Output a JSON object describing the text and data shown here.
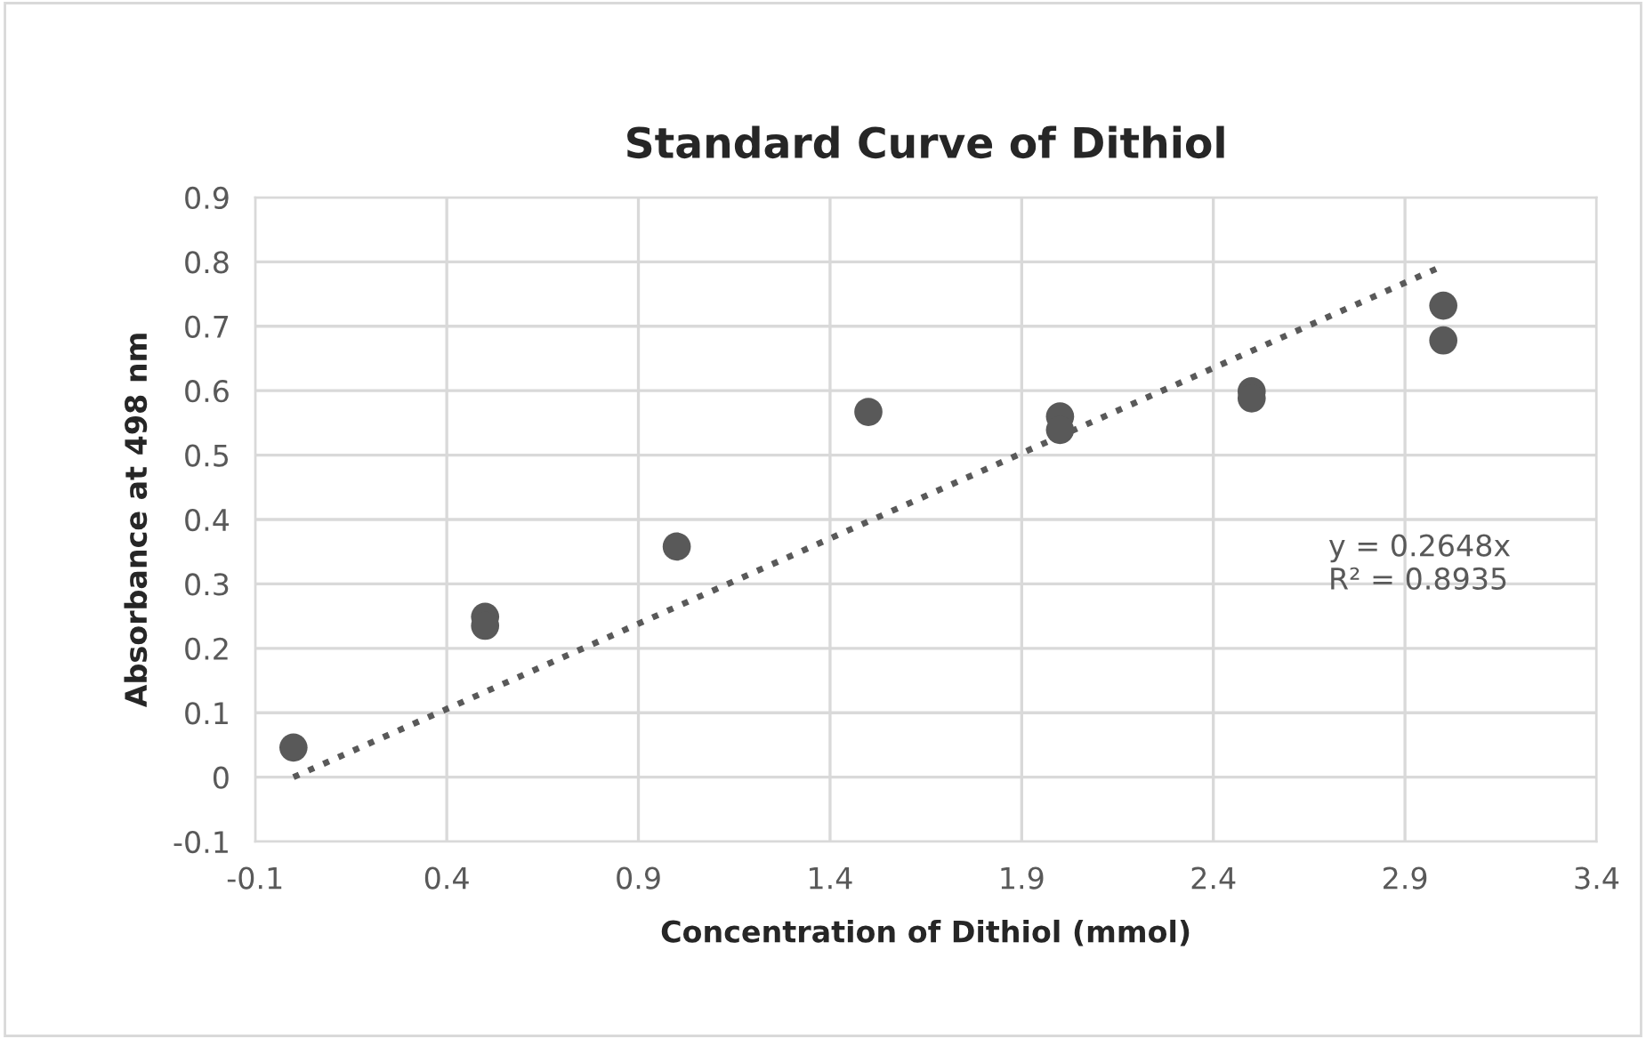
{
  "chart_data": {
    "type": "scatter",
    "title": "Standard Curve of Dithiol",
    "xlabel": "Concentration of Dithiol (mmol)",
    "ylabel": "Absorbance at 498 nm",
    "series": [
      {
        "color": "#595959",
        "marker": "circle",
        "x": [
          0,
          0.5,
          0.5,
          1,
          1.5,
          2,
          2,
          2.5,
          2.5,
          3,
          3
        ],
        "values": [
          0.046,
          0.249,
          0.235,
          0.358,
          0.567,
          0.56,
          0.539,
          0.599,
          0.588,
          0.732,
          0.678
        ]
      },
      {
        "type": "line",
        "color": "#595959",
        "line_style": "dotted",
        "x": [
          0,
          3
        ],
        "values": [
          0,
          0.794
        ]
      }
    ],
    "annotations": [
      "y = 0.2648x\nR² = 0.8935"
    ],
    "xlim": [
      -0.1,
      3.4
    ],
    "xticks": [
      -0.1,
      0.4,
      0.9,
      1.4,
      1.9,
      2.4,
      2.9,
      3.4
    ],
    "ylim": [
      -0.1,
      0.9
    ],
    "yticks": [
      -0.1,
      0,
      0.1,
      0.2,
      0.3,
      0.4,
      0.5,
      0.6,
      0.7,
      0.8,
      0.9
    ],
    "grid": true,
    "legend": false
  }
}
